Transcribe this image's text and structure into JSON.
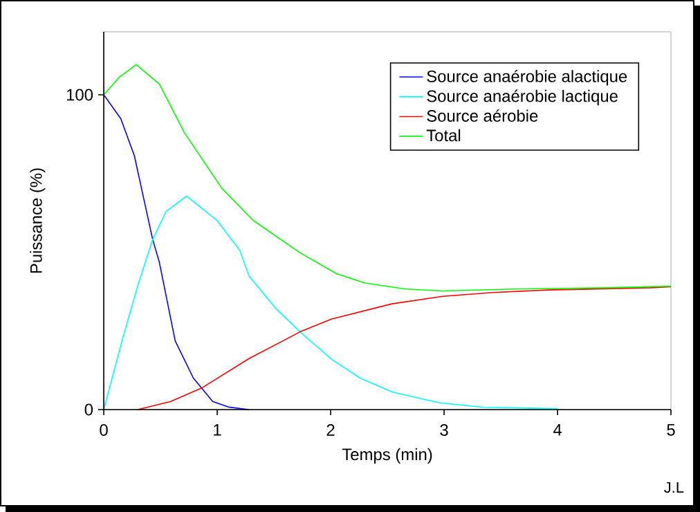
{
  "chart_data": {
    "type": "line",
    "xlabel": "Temps (min)",
    "ylabel": "Puissance (%)",
    "xlim": [
      0,
      5
    ],
    "ylim": [
      0,
      120
    ],
    "xticks": [
      0,
      1,
      2,
      3,
      4,
      5
    ],
    "yticks": [
      0,
      100
    ],
    "grid": false,
    "legend": "top right",
    "marker": "none",
    "line_style": "solid",
    "annotations": [
      "J.L"
    ],
    "series": [
      {
        "name": "Source anaérobie alactique",
        "color": "#0000ff",
        "x": [
          0,
          0.15,
          0.27,
          0.35,
          0.43,
          0.49,
          0.63,
          0.79,
          0.96,
          1.1,
          1.28
        ],
        "values": [
          100,
          92.4,
          80.6,
          67.4,
          54.2,
          46.8,
          21.8,
          10,
          2.6,
          0.8,
          0
        ]
      },
      {
        "name": "Source anaérobie lactique",
        "color": "#00ffff",
        "x": [
          0,
          0.16,
          0.3,
          0.43,
          0.55,
          0.73,
          1.0,
          1.2,
          1.28,
          1.52,
          1.73,
          2.01,
          2.26,
          2.54,
          2.95,
          3.35,
          4.0
        ],
        "values": [
          0,
          21.8,
          39.4,
          54,
          63,
          67.8,
          60,
          50.5,
          42.4,
          32,
          24.7,
          15.9,
          10,
          5.6,
          2.2,
          0.7,
          0.3
        ]
      },
      {
        "name": "Source aérobie",
        "color": "#ff0000",
        "x": [
          0.3,
          0.59,
          0.87,
          1.28,
          1.73,
          2.01,
          2.54,
          2.99,
          3.43,
          3.92,
          4.82,
          5.0
        ],
        "values": [
          0,
          2.6,
          7,
          16.2,
          24.7,
          28.8,
          33.6,
          36,
          37.2,
          38,
          38.7,
          39
        ]
      },
      {
        "name": "Total",
        "color": "#00ff00",
        "x": [
          0,
          0.14,
          0.285,
          0.49,
          0.71,
          1.04,
          1.32,
          1.73,
          2.05,
          2.3,
          2.66,
          2.99,
          3.63,
          4.45,
          5.0
        ],
        "values": [
          100,
          105.7,
          109.6,
          103.4,
          88,
          70.3,
          60,
          49.8,
          43.2,
          40.2,
          38.3,
          37.7,
          38.3,
          38.7,
          39.2
        ]
      }
    ]
  }
}
